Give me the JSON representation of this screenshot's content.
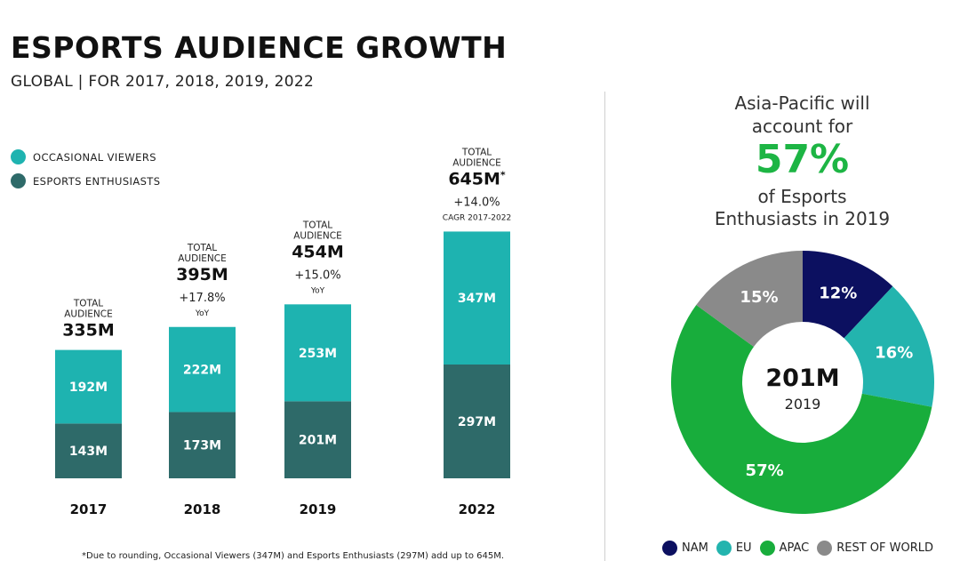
{
  "header": {
    "title": "ESPORTS AUDIENCE GROWTH",
    "subtitle": "GLOBAL | FOR 2017, 2018, 2019, 2022"
  },
  "chart_data": [
    {
      "type": "bar",
      "stacked": true,
      "categories": [
        "2017",
        "2018",
        "2019",
        "2022"
      ],
      "series": [
        {
          "name": "ESPORTS ENTHUSIASTS",
          "color": "#2e6a69",
          "values": [
            143,
            173,
            201,
            297
          ],
          "labels": [
            "143M",
            "173M",
            "201M",
            "297M"
          ]
        },
        {
          "name": "OCCASIONAL VIEWERS",
          "color": "#1eb3b0",
          "values": [
            192,
            222,
            253,
            347
          ],
          "labels": [
            "192M",
            "222M",
            "253M",
            "347M"
          ]
        }
      ],
      "totals": [
        {
          "caption1": "TOTAL",
          "caption2": "AUDIENCE",
          "value": "335M",
          "growth": "",
          "growth_note": ""
        },
        {
          "caption1": "TOTAL",
          "caption2": "AUDIENCE",
          "value": "395M",
          "growth": "+17.8%",
          "growth_note": "YoY"
        },
        {
          "caption1": "TOTAL",
          "caption2": "AUDIENCE",
          "value": "454M",
          "growth": "+15.0%",
          "growth_note": "YoY"
        },
        {
          "caption1": "TOTAL",
          "caption2": "AUDIENCE",
          "value": "645M",
          "value_mark": "*",
          "growth": "+14.0%",
          "growth_note": "CAGR 2017-2022"
        }
      ],
      "footnote": "*Due to rounding, Occasional Viewers (347M) and Esports Enthusiasts (297M) add up to 645M."
    },
    {
      "type": "pie",
      "donut": true,
      "center_value": "201M",
      "center_label": "2019",
      "slices": [
        {
          "name": "NAM",
          "value": 12,
          "label": "12%",
          "color": "#0c1060"
        },
        {
          "name": "EU",
          "value": 16,
          "label": "16%",
          "color": "#23b4ae"
        },
        {
          "name": "APAC",
          "value": 57,
          "label": "57%",
          "color": "#18ad3c"
        },
        {
          "name": "REST OF WORLD",
          "value": 15,
          "label": "15%",
          "color": "#8a8a8a"
        }
      ],
      "callout": {
        "line1": "Asia-Pacific will",
        "line2": "account for",
        "highlight": "57%",
        "line3": "of Esports",
        "line4": "Enthusiasts in 2019"
      }
    }
  ]
}
